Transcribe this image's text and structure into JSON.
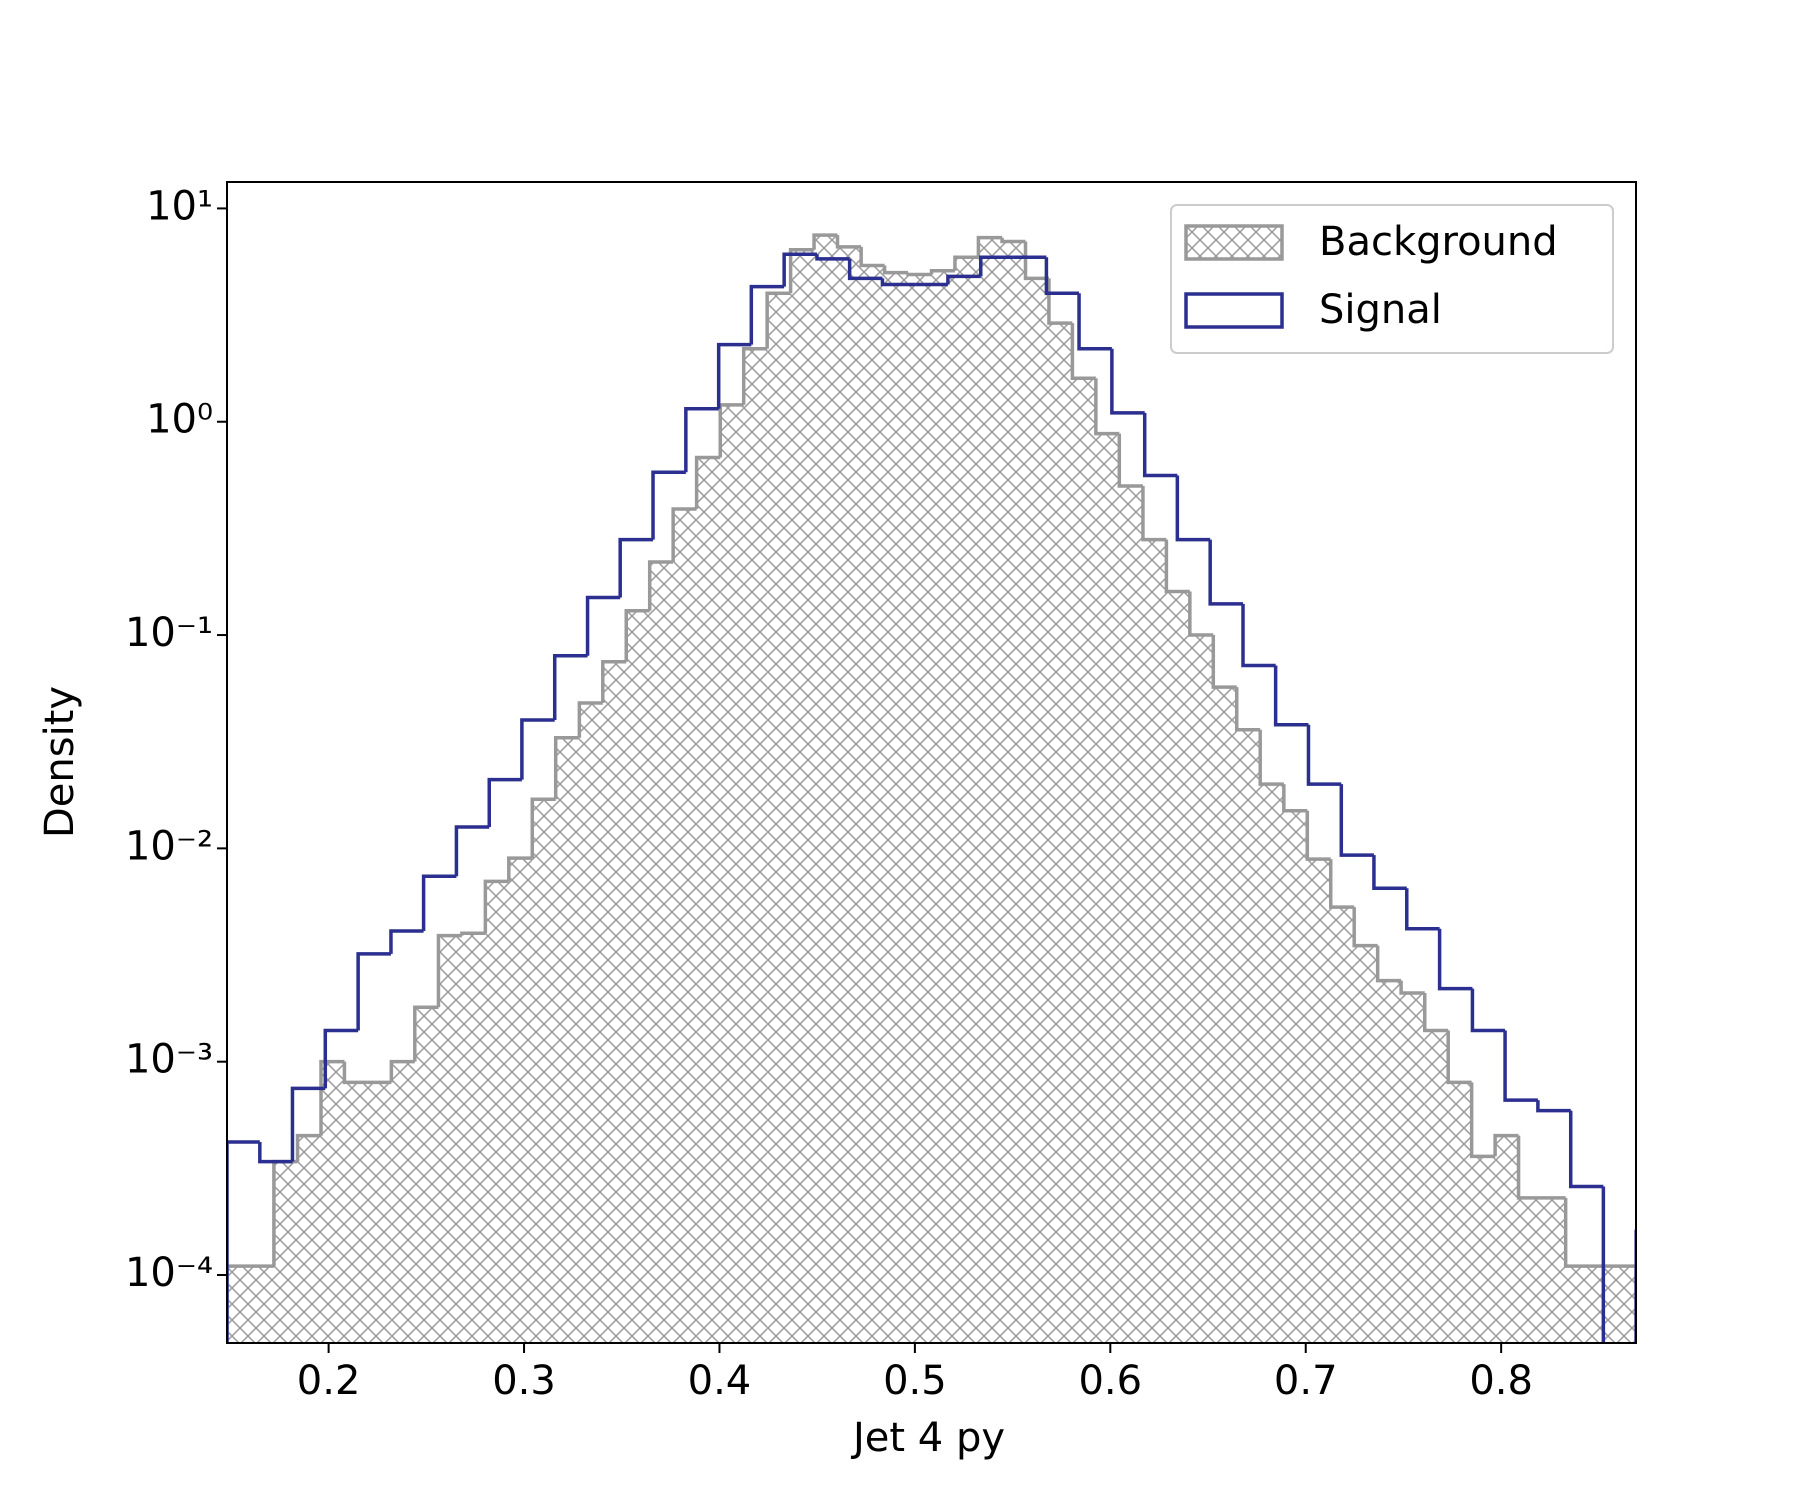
{
  "chart_data": {
    "type": "histogram",
    "xlabel": "Jet 4 py",
    "ylabel": "Density",
    "xlim": [
      0.148,
      0.869
    ],
    "ylim": [
      4.8e-05,
      13.3
    ],
    "yscale": "log",
    "xticks": [
      0.2,
      0.3,
      0.4,
      0.5,
      0.6,
      0.7,
      0.8
    ],
    "yticks": [
      {
        "value": 0.0001,
        "label": "10⁻⁴"
      },
      {
        "value": 0.001,
        "label": "10⁻³"
      },
      {
        "value": 0.01,
        "label": "10⁻²"
      },
      {
        "value": 0.1,
        "label": "10⁻¹"
      },
      {
        "value": 1,
        "label": "10⁰"
      },
      {
        "value": 10,
        "label": "10¹"
      }
    ],
    "legend": "upper right",
    "series": [
      {
        "name": "Background",
        "color": "#999999",
        "hatch": true,
        "bins": [
          0.148,
          0.16,
          0.172,
          0.1841,
          0.1961,
          0.2081,
          0.2201,
          0.2321,
          0.2441,
          0.2562,
          0.2682,
          0.2802,
          0.2922,
          0.3042,
          0.3162,
          0.3283,
          0.3403,
          0.3523,
          0.3643,
          0.3763,
          0.3883,
          0.4004,
          0.4124,
          0.4244,
          0.4364,
          0.4484,
          0.4604,
          0.4725,
          0.4845,
          0.4965,
          0.5085,
          0.5205,
          0.5325,
          0.5446,
          0.5566,
          0.5686,
          0.5806,
          0.5926,
          0.6046,
          0.6167,
          0.6287,
          0.6407,
          0.6527,
          0.6647,
          0.6767,
          0.6888,
          0.7008,
          0.7128,
          0.7248,
          0.7368,
          0.7488,
          0.7609,
          0.7729,
          0.7849,
          0.7969,
          0.8089,
          0.8209,
          0.833,
          0.845,
          0.857,
          0.869
        ],
        "values": [
          0.00011,
          0.00011,
          0.00034,
          0.00045,
          0.001,
          0.0008,
          0.0008,
          0.001,
          0.0018,
          0.0039,
          0.004,
          0.007,
          0.009,
          0.017,
          0.033,
          0.048,
          0.075,
          0.13,
          0.22,
          0.39,
          0.68,
          1.2,
          2.2,
          4.0,
          6.4,
          7.5,
          6.6,
          5.4,
          5.0,
          4.9,
          5.1,
          5.9,
          7.3,
          7.0,
          4.7,
          2.9,
          1.6,
          0.88,
          0.5,
          0.28,
          0.16,
          0.1,
          0.057,
          0.036,
          0.02,
          0.015,
          0.0089,
          0.0053,
          0.0035,
          0.0024,
          0.0021,
          0.0014,
          0.0008,
          0.00036,
          0.00045,
          0.00023,
          0.00023,
          0.00011,
          0.00011,
          0.00011
        ]
      },
      {
        "name": "Signal",
        "color": "#2b2f8f",
        "hatch": false,
        "bins": [
          0.148,
          0.1648,
          0.1815,
          0.1983,
          0.2151,
          0.2319,
          0.2486,
          0.2654,
          0.2822,
          0.2989,
          0.3157,
          0.3325,
          0.3492,
          0.366,
          0.3828,
          0.3996,
          0.4163,
          0.4331,
          0.4499,
          0.4666,
          0.4834,
          0.5002,
          0.5169,
          0.5337,
          0.5505,
          0.5673,
          0.584,
          0.6008,
          0.6176,
          0.6343,
          0.6511,
          0.6679,
          0.6846,
          0.7014,
          0.7182,
          0.7349,
          0.7517,
          0.7685,
          0.7853,
          0.802,
          0.8188,
          0.8356,
          0.8523,
          0.8691,
          0.8859
        ],
        "values": [
          0.00042,
          0.00034,
          0.00075,
          0.0014,
          0.0032,
          0.0041,
          0.0074,
          0.0126,
          0.021,
          0.04,
          0.08,
          0.15,
          0.28,
          0.58,
          1.15,
          2.3,
          4.3,
          6.1,
          5.8,
          4.7,
          4.4,
          4.4,
          4.8,
          5.9,
          5.9,
          4.0,
          2.2,
          1.1,
          0.56,
          0.28,
          0.14,
          0.072,
          0.038,
          0.02,
          0.0093,
          0.0065,
          0.0042,
          0.0022,
          0.0014,
          0.00066,
          0.00059,
          0.00026,
          0,
          0.00016
        ]
      }
    ]
  }
}
